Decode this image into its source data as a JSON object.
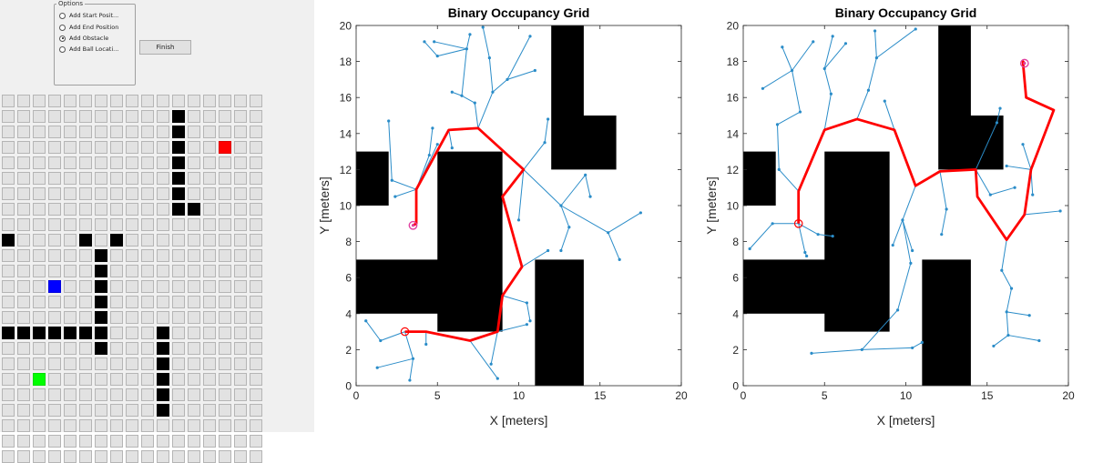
{
  "options": {
    "title": "Options",
    "radios": [
      {
        "label": "Add Start Posit...",
        "checked": false
      },
      {
        "label": "Add End Position",
        "checked": false
      },
      {
        "label": "Add Obstacle",
        "checked": true
      },
      {
        "label": "Add Ball Locati...",
        "checked": false
      }
    ],
    "finish_label": "Finish"
  },
  "grid": {
    "cols": 17,
    "rows": 24,
    "cells": [
      ".................",
      "...........B.....",
      "...........B.....",
      "...........B..E..",
      "...........B.....",
      "...........B.....",
      "...........B.....",
      "...........BB....",
      ".................",
      "B....B.B.........",
      "......B..........",
      "......B..........",
      "...P..B..........",
      "......B..........",
      "......B..........",
      "BBBBBBB...B......",
      "......B...B......",
      "..........B......",
      "..S.......B......",
      "..........B......",
      "..........B......",
      ".................",
      ".................",
      "................."
    ]
  },
  "colors": {
    "obstacle": "#000000",
    "start": "#00ff00",
    "end": "#ff0000",
    "ball": "#0000ff",
    "tree": "#2a8cc8",
    "path": "#ff0000",
    "marker": "#e040a0"
  },
  "chart_data": [
    {
      "type": "scatter",
      "title": "Binary Occupancy Grid",
      "xlabel": "X [meters]",
      "ylabel": "Y [meters]",
      "xlim": [
        0,
        20
      ],
      "ylim": [
        0,
        20
      ],
      "xticks": [
        "0",
        "5",
        "10",
        "15",
        "20"
      ],
      "yticks": [
        "0",
        "2",
        "4",
        "6",
        "8",
        "10",
        "12",
        "14",
        "16",
        "18",
        "20"
      ],
      "obstacles": [
        [
          0,
          10,
          2,
          13
        ],
        [
          5,
          3,
          9,
          13
        ],
        [
          0,
          4,
          6,
          7
        ],
        [
          11,
          0,
          14,
          7
        ],
        [
          12,
          12,
          16,
          15
        ],
        [
          12,
          15,
          14,
          20
        ]
      ],
      "path": [
        [
          3.5,
          8.9
        ],
        [
          3.7,
          9
        ],
        [
          3.7,
          10.9
        ],
        [
          5.7,
          14.2
        ],
        [
          7.5,
          14.3
        ],
        [
          10.3,
          12
        ],
        [
          9,
          10.5
        ],
        [
          10.2,
          6.6
        ],
        [
          9,
          5
        ],
        [
          8.7,
          3
        ],
        [
          7,
          2.5
        ],
        [
          4.3,
          3
        ],
        [
          3,
          3
        ]
      ],
      "start": [
        3,
        3
      ],
      "goal": [
        3.5,
        8.9
      ],
      "tree_edges": [
        [
          [
            3,
            3
          ],
          [
            1.5,
            2.5
          ]
        ],
        [
          [
            1.5,
            2.5
          ],
          [
            0.6,
            3.6
          ]
        ],
        [
          [
            3,
            3
          ],
          [
            3.5,
            1.5
          ]
        ],
        [
          [
            3.5,
            1.5
          ],
          [
            1.3,
            1
          ]
        ],
        [
          [
            3.5,
            1.5
          ],
          [
            3.3,
            0.3
          ]
        ],
        [
          [
            4.3,
            3
          ],
          [
            4.3,
            2.3
          ]
        ],
        [
          [
            7,
            2.5
          ],
          [
            8.7,
            0.4
          ]
        ],
        [
          [
            8.7,
            3
          ],
          [
            10.5,
            3.4
          ]
        ],
        [
          [
            8.7,
            3
          ],
          [
            8.3,
            1.2
          ]
        ],
        [
          [
            10.3,
            12
          ],
          [
            10,
            9.2
          ]
        ],
        [
          [
            10.3,
            12
          ],
          [
            11.6,
            13.5
          ]
        ],
        [
          [
            11.6,
            13.5
          ],
          [
            11.8,
            14.8
          ]
        ],
        [
          [
            10.3,
            12
          ],
          [
            12.6,
            10
          ]
        ],
        [
          [
            12.6,
            10
          ],
          [
            13.1,
            8.8
          ]
        ],
        [
          [
            12.6,
            10
          ],
          [
            14.1,
            11.7
          ]
        ],
        [
          [
            14.1,
            11.7
          ],
          [
            14.4,
            10.5
          ]
        ],
        [
          [
            12.6,
            10
          ],
          [
            15.5,
            8.5
          ]
        ],
        [
          [
            15.5,
            8.5
          ],
          [
            16.2,
            7
          ]
        ],
        [
          [
            15.5,
            8.5
          ],
          [
            17.5,
            9.6
          ]
        ],
        [
          [
            13.1,
            8.8
          ],
          [
            12.6,
            7.5
          ]
        ],
        [
          [
            7.5,
            14.3
          ],
          [
            8.4,
            16.3
          ]
        ],
        [
          [
            8.4,
            16.3
          ],
          [
            8.2,
            18.2
          ]
        ],
        [
          [
            8.4,
            16.3
          ],
          [
            9.3,
            17
          ]
        ],
        [
          [
            9.3,
            17
          ],
          [
            10.7,
            19.4
          ]
        ],
        [
          [
            9.3,
            17
          ],
          [
            11,
            17.5
          ]
        ],
        [
          [
            8.2,
            18.2
          ],
          [
            7.8,
            19.9
          ]
        ],
        [
          [
            7.5,
            14.3
          ],
          [
            7.3,
            15.7
          ]
        ],
        [
          [
            7.3,
            15.7
          ],
          [
            6.5,
            16.1
          ]
        ],
        [
          [
            6.5,
            16.1
          ],
          [
            5.9,
            16.3
          ]
        ],
        [
          [
            6.5,
            16.1
          ],
          [
            6.8,
            18.7
          ]
        ],
        [
          [
            6.8,
            18.7
          ],
          [
            4.8,
            19.1
          ]
        ],
        [
          [
            6.8,
            18.7
          ],
          [
            7,
            19.5
          ]
        ],
        [
          [
            6.8,
            18.7
          ],
          [
            5,
            18.3
          ]
        ],
        [
          [
            5,
            18.3
          ],
          [
            4.2,
            19.1
          ]
        ],
        [
          [
            3.7,
            10.9
          ],
          [
            2.2,
            11.4
          ]
        ],
        [
          [
            2.2,
            11.4
          ],
          [
            2,
            14.7
          ]
        ],
        [
          [
            3.7,
            10.9
          ],
          [
            4.5,
            12.8
          ]
        ],
        [
          [
            4.5,
            12.8
          ],
          [
            4.7,
            14.3
          ]
        ],
        [
          [
            3.7,
            10.9
          ],
          [
            2.4,
            10.5
          ]
        ],
        [
          [
            3.7,
            10.9
          ],
          [
            5,
            13.4
          ]
        ],
        [
          [
            10.2,
            6.6
          ],
          [
            11.8,
            7.5
          ]
        ],
        [
          [
            9,
            5
          ],
          [
            10.5,
            4.6
          ]
        ],
        [
          [
            10.5,
            4.6
          ],
          [
            10.7,
            3.6
          ]
        ],
        [
          [
            5.7,
            14.2
          ],
          [
            5.9,
            13.2
          ]
        ]
      ]
    },
    {
      "type": "scatter",
      "title": "Binary Occupancy Grid",
      "xlabel": "X [meters]",
      "ylabel": "Y [meters]",
      "xlim": [
        0,
        20
      ],
      "ylim": [
        0,
        20
      ],
      "xticks": [
        "0",
        "5",
        "10",
        "15",
        "20"
      ],
      "yticks": [
        "0",
        "2",
        "4",
        "6",
        "8",
        "10",
        "12",
        "14",
        "16",
        "18",
        "20"
      ],
      "obstacles": [
        [
          0,
          10,
          2,
          13
        ],
        [
          5,
          3,
          9,
          13
        ],
        [
          0,
          4,
          6,
          7
        ],
        [
          11,
          0,
          14,
          7
        ],
        [
          12,
          12,
          16,
          15
        ],
        [
          12,
          15,
          14,
          20
        ]
      ],
      "path": [
        [
          3.4,
          9
        ],
        [
          3.4,
          10.8
        ],
        [
          5,
          14.2
        ],
        [
          7,
          14.8
        ],
        [
          9.3,
          14.2
        ],
        [
          10.6,
          11.1
        ],
        [
          12.1,
          11.9
        ],
        [
          14.3,
          12
        ],
        [
          14.4,
          10.5
        ],
        [
          16.2,
          8.1
        ],
        [
          17.3,
          9.5
        ],
        [
          17.7,
          12
        ],
        [
          19.1,
          15.3
        ],
        [
          17.4,
          16
        ],
        [
          17.2,
          18
        ],
        [
          17.3,
          17.9
        ]
      ],
      "start": [
        3.4,
        9
      ],
      "goal": [
        17.3,
        17.9
      ],
      "tree_edges": [
        [
          [
            3.4,
            9
          ],
          [
            1.8,
            9
          ]
        ],
        [
          [
            1.8,
            9
          ],
          [
            0.4,
            7.6
          ]
        ],
        [
          [
            3.4,
            9
          ],
          [
            3.8,
            7.4
          ]
        ],
        [
          [
            3.8,
            7.4
          ],
          [
            3.9,
            7.2
          ]
        ],
        [
          [
            3.4,
            9
          ],
          [
            4.6,
            8.4
          ]
        ],
        [
          [
            4.6,
            8.4
          ],
          [
            5.5,
            8.3
          ]
        ],
        [
          [
            3.4,
            10.8
          ],
          [
            2.2,
            12
          ]
        ],
        [
          [
            2.2,
            12
          ],
          [
            2.1,
            14.5
          ]
        ],
        [
          [
            2.1,
            14.5
          ],
          [
            3.5,
            15.2
          ]
        ],
        [
          [
            3.5,
            15.2
          ],
          [
            3,
            17.5
          ]
        ],
        [
          [
            3,
            17.5
          ],
          [
            2.4,
            18.8
          ]
        ],
        [
          [
            3,
            17.5
          ],
          [
            1.2,
            16.5
          ]
        ],
        [
          [
            3,
            17.5
          ],
          [
            4.3,
            19.1
          ]
        ],
        [
          [
            5,
            14.2
          ],
          [
            5.4,
            16.2
          ]
        ],
        [
          [
            5.4,
            16.2
          ],
          [
            5,
            17.6
          ]
        ],
        [
          [
            5,
            17.6
          ],
          [
            5.5,
            19.4
          ]
        ],
        [
          [
            5,
            17.6
          ],
          [
            6.3,
            19
          ]
        ],
        [
          [
            7,
            14.8
          ],
          [
            7.7,
            16.4
          ]
        ],
        [
          [
            7.7,
            16.4
          ],
          [
            8.2,
            18.2
          ]
        ],
        [
          [
            8.2,
            18.2
          ],
          [
            8.1,
            19.7
          ]
        ],
        [
          [
            8.2,
            18.2
          ],
          [
            10.6,
            19.8
          ]
        ],
        [
          [
            9.3,
            14.2
          ],
          [
            8.7,
            15.8
          ]
        ],
        [
          [
            10.6,
            11.1
          ],
          [
            9.8,
            9.2
          ]
        ],
        [
          [
            9.8,
            9.2
          ],
          [
            10.4,
            7.5
          ]
        ],
        [
          [
            9.8,
            9.2
          ],
          [
            9.2,
            7.8
          ]
        ],
        [
          [
            12.1,
            11.9
          ],
          [
            12.5,
            9.8
          ]
        ],
        [
          [
            12.5,
            9.8
          ],
          [
            12.2,
            8.4
          ]
        ],
        [
          [
            14.3,
            12
          ],
          [
            15.2,
            10.6
          ]
        ],
        [
          [
            15.2,
            10.6
          ],
          [
            16.7,
            11
          ]
        ],
        [
          [
            17.7,
            12
          ],
          [
            16.2,
            12.2
          ]
        ],
        [
          [
            17.7,
            12
          ],
          [
            17.8,
            10.6
          ]
        ],
        [
          [
            17.7,
            12
          ],
          [
            17.2,
            13.4
          ]
        ],
        [
          [
            16.2,
            8.1
          ],
          [
            15.9,
            6.4
          ]
        ],
        [
          [
            15.9,
            6.4
          ],
          [
            16.5,
            5.4
          ]
        ],
        [
          [
            16.5,
            5.4
          ],
          [
            16.2,
            4.1
          ]
        ],
        [
          [
            16.2,
            4.1
          ],
          [
            17.6,
            3.9
          ]
        ],
        [
          [
            16.2,
            4.1
          ],
          [
            16.3,
            2.8
          ]
        ],
        [
          [
            16.3,
            2.8
          ],
          [
            15.4,
            2.2
          ]
        ],
        [
          [
            16.3,
            2.8
          ],
          [
            18.2,
            2.5
          ]
        ],
        [
          [
            17.3,
            9.5
          ],
          [
            19.5,
            9.7
          ]
        ],
        [
          [
            9.8,
            9.2
          ],
          [
            10.3,
            6.8
          ]
        ],
        [
          [
            10.3,
            6.8
          ],
          [
            9.5,
            4.2
          ]
        ],
        [
          [
            9.5,
            4.2
          ],
          [
            7.3,
            2
          ]
        ],
        [
          [
            7.3,
            2
          ],
          [
            4.2,
            1.8
          ]
        ],
        [
          [
            7.3,
            2
          ],
          [
            10.4,
            2.1
          ]
        ],
        [
          [
            10.4,
            2.1
          ],
          [
            11,
            2.4
          ]
        ],
        [
          [
            14.3,
            12
          ],
          [
            15.6,
            14.6
          ]
        ],
        [
          [
            15.6,
            14.6
          ],
          [
            15.8,
            15.4
          ]
        ]
      ]
    }
  ]
}
